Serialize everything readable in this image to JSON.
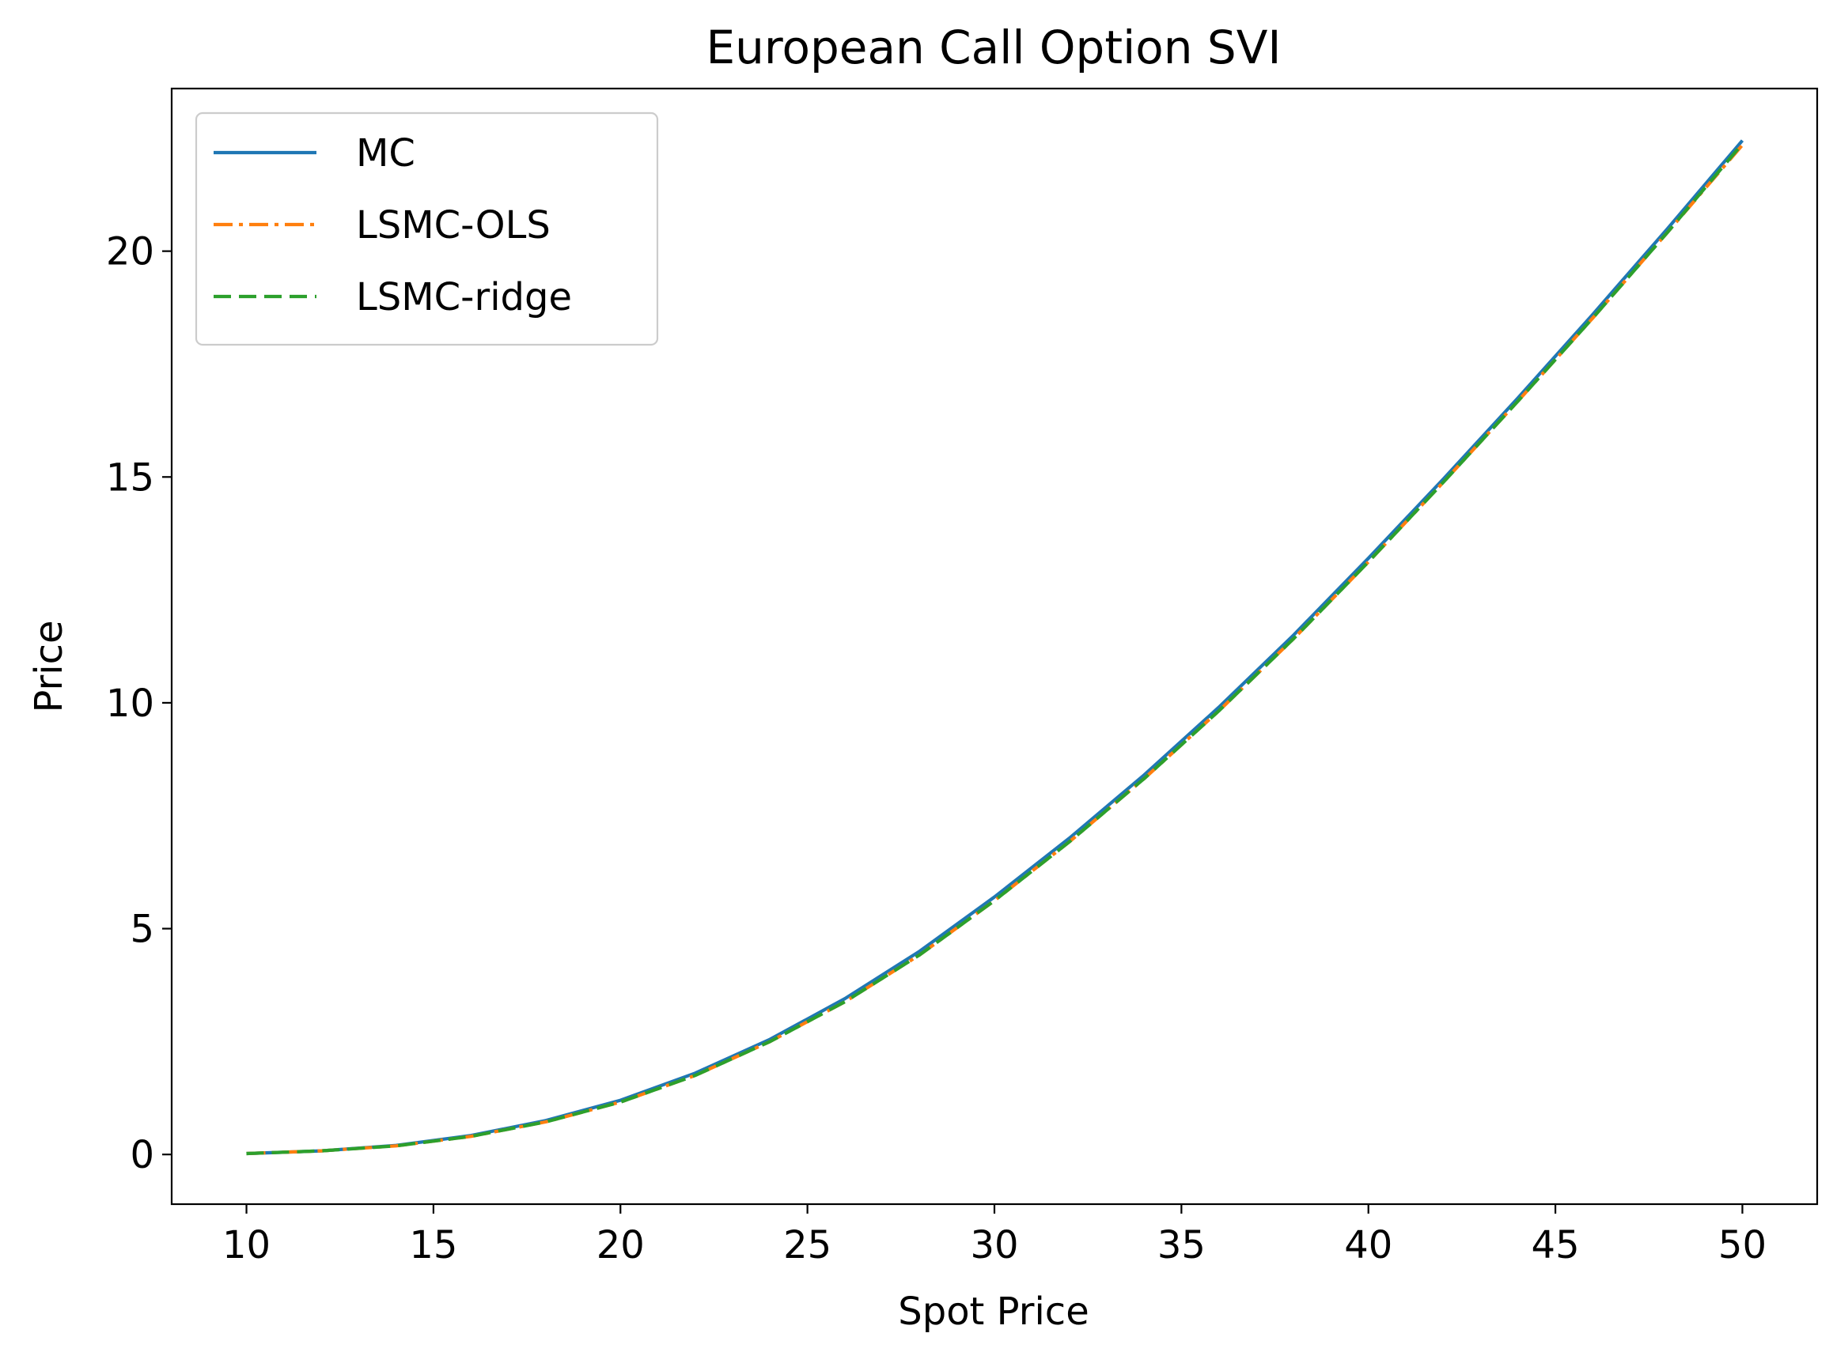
{
  "chart_data": {
    "type": "line",
    "title": "European Call Option SVI",
    "xlabel": "Spot Price",
    "ylabel": "Price",
    "xlim": [
      8,
      52
    ],
    "ylim": [
      -1.1,
      23.6
    ],
    "xticks": [
      10,
      15,
      20,
      25,
      30,
      35,
      40,
      45,
      50
    ],
    "yticks": [
      0,
      5,
      10,
      15,
      20
    ],
    "grid": false,
    "legend_position": "top-left",
    "x": [
      10,
      12,
      14,
      16,
      18,
      20,
      22,
      24,
      26,
      28,
      30,
      32,
      34,
      36,
      38,
      40,
      42,
      44,
      46,
      48,
      50
    ],
    "series": [
      {
        "name": "MC",
        "color": "#1f77b4",
        "style": "solid",
        "values": [
          0.02,
          0.08,
          0.2,
          0.42,
          0.75,
          1.2,
          1.8,
          2.55,
          3.45,
          4.5,
          5.7,
          7.0,
          8.4,
          9.9,
          11.5,
          13.2,
          14.95,
          16.75,
          18.6,
          20.5,
          22.45
        ]
      },
      {
        "name": "LSMC-OLS",
        "color": "#ff7f0e",
        "style": "dashdot",
        "values": [
          0.02,
          0.08,
          0.19,
          0.4,
          0.72,
          1.16,
          1.75,
          2.5,
          3.38,
          4.42,
          5.62,
          6.92,
          8.32,
          9.82,
          11.42,
          13.12,
          14.88,
          16.68,
          18.52,
          20.42,
          22.35
        ]
      },
      {
        "name": "LSMC-ridge",
        "color": "#2ca02c",
        "style": "dashed",
        "values": [
          0.02,
          0.08,
          0.19,
          0.4,
          0.72,
          1.16,
          1.75,
          2.5,
          3.38,
          4.42,
          5.62,
          6.92,
          8.32,
          9.82,
          11.42,
          13.12,
          14.88,
          16.68,
          18.52,
          20.42,
          22.38
        ]
      }
    ]
  }
}
